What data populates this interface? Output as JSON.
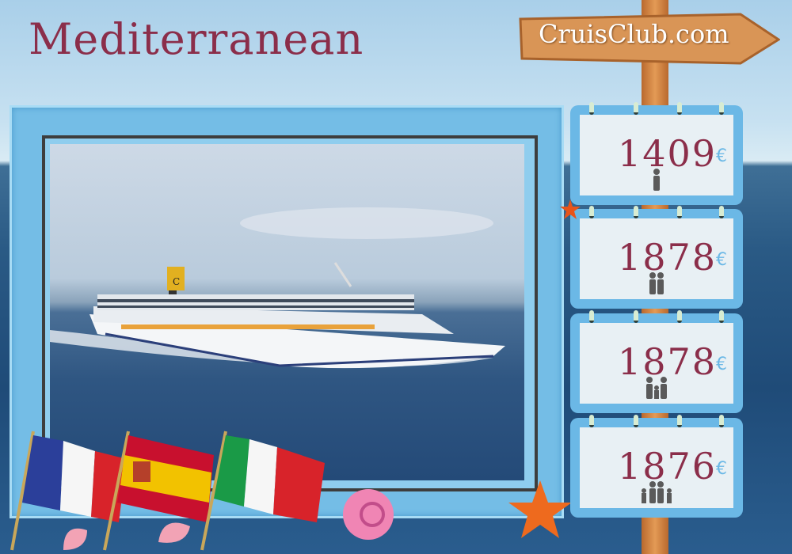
{
  "title": "Mediterranean",
  "brand": "CruisClub.com",
  "colors": {
    "title": "#8b2e4a",
    "frame": "#74bde6",
    "price": "#8b2e4a",
    "euro": "#6bb8e6"
  },
  "prices": [
    {
      "amount": "1409",
      "currency": "€",
      "icon": "single-person-icon"
    },
    {
      "amount": "1878",
      "currency": "€",
      "icon": "couple-icon"
    },
    {
      "amount": "1878",
      "currency": "€",
      "icon": "adult-child-icon"
    },
    {
      "amount": "1876",
      "currency": "€",
      "icon": "family-icon"
    }
  ],
  "flags": [
    "france-flag",
    "spain-flag",
    "italy-flag"
  ],
  "ship_funnel_letter": "C"
}
